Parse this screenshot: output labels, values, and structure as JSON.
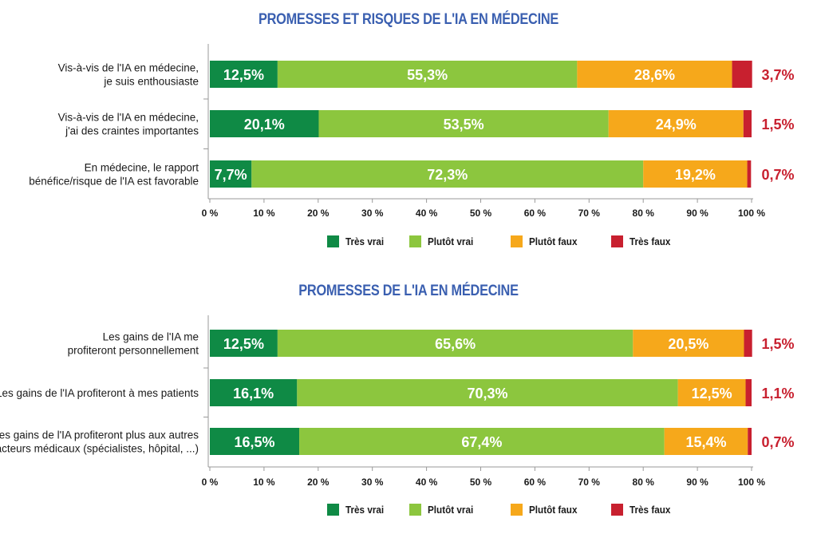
{
  "colors": {
    "tres_vrai": "#0f8a45",
    "plutot_vrai": "#8cc63e",
    "plutot_faux": "#f6a81b",
    "tres_faux": "#c8202f",
    "title": "#3a5fb0"
  },
  "chart_data": [
    {
      "type": "bar",
      "orientation": "horizontal",
      "stacked": true,
      "title": "PROMESSES ET RISQUES DE L'IA EN MÉDECINE",
      "categories": [
        "Vis-à-vis de l'IA en médecine, je suis enthousiaste",
        "Vis-à-vis de l'IA en médecine, j'ai des craintes importantes",
        "En médecine, le rapport bénéfice/risque de l'IA est favorable"
      ],
      "category_lines": [
        [
          "Vis-à-vis de l'IA en médecine,",
          "je suis enthousiaste"
        ],
        [
          "Vis-à-vis de l'IA en médecine,",
          "j'ai des craintes importantes"
        ],
        [
          "En médecine, le rapport",
          "bénéfice/risque de l'IA est favorable"
        ]
      ],
      "series": [
        {
          "name": "Très vrai",
          "values": [
            12.5,
            20.1,
            7.7
          ],
          "labels": [
            "12,5%",
            "20,1%",
            "7,7%"
          ]
        },
        {
          "name": "Plutôt vrai",
          "values": [
            55.3,
            53.5,
            72.3
          ],
          "labels": [
            "55,3%",
            "53,5%",
            "72,3%"
          ]
        },
        {
          "name": "Plutôt faux",
          "values": [
            28.6,
            24.9,
            19.2
          ],
          "labels": [
            "28,6%",
            "24,9%",
            "19,2%"
          ]
        },
        {
          "name": "Très faux",
          "values": [
            3.7,
            1.5,
            0.7
          ],
          "labels": [
            "3,7%",
            "1,5%",
            "0,7%"
          ]
        }
      ],
      "xlim": [
        0,
        100
      ],
      "ticks": [
        "0 %",
        "10 %",
        "20 %",
        "30 %",
        "40 %",
        "50 %",
        "60 %",
        "70 %",
        "80 %",
        "90 %",
        "100 %"
      ],
      "legend": "bottom"
    },
    {
      "type": "bar",
      "orientation": "horizontal",
      "stacked": true,
      "title": "PROMESSES DE L'IA EN MÉDECINE",
      "categories": [
        "Les gains de l'IA me profiteront personnellement",
        "Les gains de l'IA profiteront à mes patients",
        "Les gains de l'IA profiteront plus aux autres acteurs médicaux (spécialistes, hôpital, ...)"
      ],
      "category_lines": [
        [
          "Les gains de l'IA me",
          "profiteront personnellement"
        ],
        [
          "Les gains de l'IA profiteront à mes patients"
        ],
        [
          "Les gains de l'IA profiteront plus aux autres",
          "acteurs médicaux (spécialistes, hôpital, ...)"
        ]
      ],
      "series": [
        {
          "name": "Très vrai",
          "values": [
            12.5,
            16.1,
            16.5
          ],
          "labels": [
            "12,5%",
            "16,1%",
            "16,5%"
          ]
        },
        {
          "name": "Plutôt vrai",
          "values": [
            65.6,
            70.3,
            67.4
          ],
          "labels": [
            "65,6%",
            "70,3%",
            "67,4%"
          ]
        },
        {
          "name": "Plutôt faux",
          "values": [
            20.5,
            12.5,
            15.4
          ],
          "labels": [
            "20,5%",
            "12,5%",
            "15,4%"
          ]
        },
        {
          "name": "Très faux",
          "values": [
            1.5,
            1.1,
            0.7
          ],
          "labels": [
            "1,5%",
            "1,1%",
            "0,7%"
          ]
        }
      ],
      "xlim": [
        0,
        100
      ],
      "ticks": [
        "0 %",
        "10 %",
        "20 %",
        "30 %",
        "40 %",
        "50 %",
        "60 %",
        "70 %",
        "80 %",
        "90 %",
        "100 %"
      ],
      "legend": "bottom"
    }
  ]
}
